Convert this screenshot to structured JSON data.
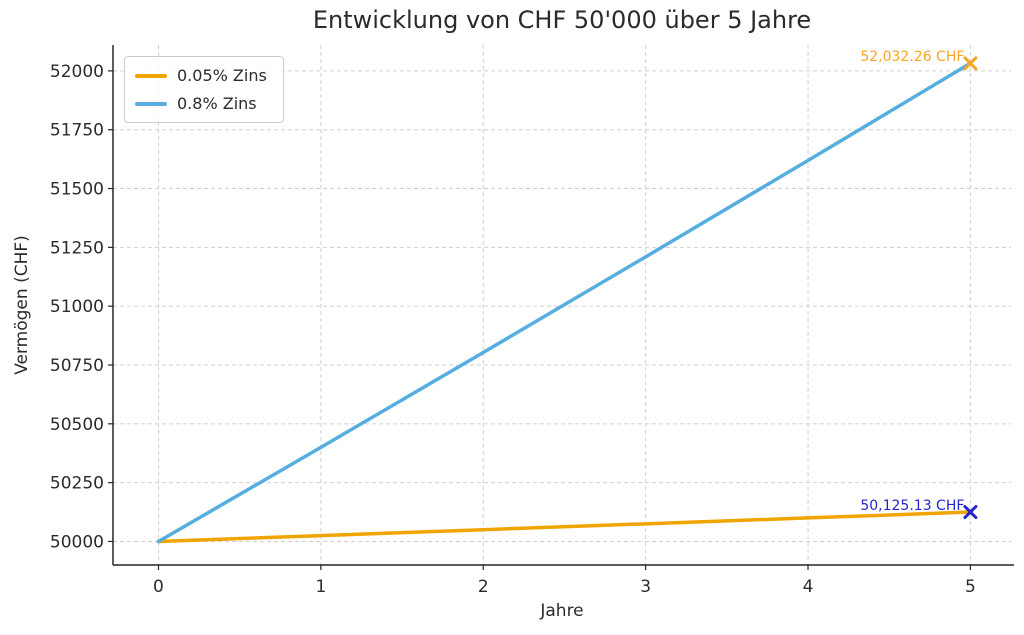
{
  "chart_data": {
    "type": "line",
    "title": "Entwicklung von CHF 50'000 über 5 Jahre",
    "xlabel": "Jahre",
    "ylabel": "Vermögen (CHF)",
    "x": [
      0,
      1,
      2,
      3,
      4,
      5
    ],
    "series": [
      {
        "name": "0.05% Zins",
        "color": "#efa400",
        "values": [
          50000,
          50025.0,
          50050.01,
          50075.04,
          50100.08,
          50125.13
        ],
        "end_marker": {
          "shape": "x",
          "color": "#2525cc"
        }
      },
      {
        "name": "0.8% Zins",
        "color": "#56ade0",
        "values": [
          50000,
          50400.0,
          50803.2,
          51209.63,
          51619.3,
          52032.26
        ],
        "end_marker": {
          "shape": "x",
          "color": "#f5a623"
        }
      }
    ],
    "xticks": [
      0,
      1,
      2,
      3,
      4,
      5
    ],
    "yticks": [
      50000,
      50250,
      50500,
      50750,
      51000,
      51250,
      51500,
      51750,
      52000
    ],
    "xlim": [
      -0.28,
      5.25
    ],
    "ylim": [
      49900,
      52110
    ],
    "grid": true,
    "grid_style": "dashed",
    "legend_position": "upper-left",
    "annotations": [
      {
        "text": "52,032.26 CHF",
        "x": 5,
        "y": 52032.26,
        "color": "#f5a623"
      },
      {
        "text": "50,125.13 CHF",
        "x": 5,
        "y": 50125.13,
        "color": "#2525cc"
      }
    ],
    "colors": {
      "grid": "#cfcfcf",
      "axis": "#262626",
      "text": "#2b2b2b",
      "background": "#ffffff"
    }
  }
}
